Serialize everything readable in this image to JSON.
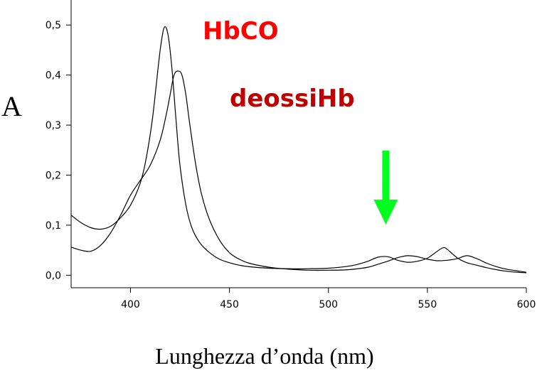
{
  "chart_data": {
    "type": "line",
    "xlabel": "Lunghezza d’onda (nm)",
    "ylabel": "A",
    "xlim": [
      370,
      600
    ],
    "ylim": [
      -0.025,
      0.55
    ],
    "xticks": [
      400,
      450,
      500,
      550,
      600
    ],
    "xtick_labels": [
      "400",
      "450",
      "500",
      "550",
      "600"
    ],
    "yticks": [
      0.0,
      0.1,
      0.2,
      0.3,
      0.4,
      0.5
    ],
    "ytick_labels": [
      "0,0",
      "0,1",
      "0,2",
      "0,3",
      "0,4",
      "0,5"
    ],
    "grid": false,
    "series": [
      {
        "color": "#000000",
        "x": [
          370,
          375,
          380,
          385,
          390,
          395,
          400,
          405,
          408,
          411,
          413,
          415,
          417,
          419,
          421,
          423,
          425,
          428,
          431,
          435,
          440,
          445,
          450,
          455,
          460,
          470,
          480,
          490,
          500,
          510,
          515,
          520,
          525,
          530,
          535,
          540,
          545,
          550,
          555,
          558,
          560,
          565,
          570,
          575,
          580,
          585,
          590,
          595,
          600
        ],
        "y": [
          0.12,
          0.105,
          0.095,
          0.092,
          0.098,
          0.115,
          0.14,
          0.185,
          0.235,
          0.31,
          0.38,
          0.45,
          0.495,
          0.48,
          0.41,
          0.31,
          0.22,
          0.14,
          0.095,
          0.065,
          0.045,
          0.032,
          0.025,
          0.02,
          0.017,
          0.014,
          0.013,
          0.013,
          0.014,
          0.018,
          0.022,
          0.028,
          0.036,
          0.037,
          0.03,
          0.026,
          0.028,
          0.034,
          0.048,
          0.055,
          0.052,
          0.035,
          0.025,
          0.02,
          0.015,
          0.011,
          0.008,
          0.006,
          0.005
        ]
      },
      {
        "color": "#000000",
        "x": [
          370,
          375,
          380,
          385,
          390,
          395,
          400,
          405,
          410,
          415,
          418,
          420,
          422,
          424,
          426,
          428,
          430,
          433,
          436,
          440,
          445,
          450,
          455,
          460,
          470,
          480,
          490,
          500,
          510,
          520,
          525,
          530,
          535,
          540,
          545,
          550,
          555,
          560,
          565,
          570,
          575,
          580,
          585,
          590,
          595,
          600
        ],
        "y": [
          0.056,
          0.05,
          0.048,
          0.06,
          0.085,
          0.12,
          0.16,
          0.19,
          0.22,
          0.27,
          0.32,
          0.36,
          0.4,
          0.408,
          0.4,
          0.36,
          0.3,
          0.22,
          0.16,
          0.11,
          0.07,
          0.045,
          0.032,
          0.024,
          0.016,
          0.012,
          0.01,
          0.01,
          0.011,
          0.016,
          0.022,
          0.028,
          0.035,
          0.039,
          0.037,
          0.032,
          0.029,
          0.03,
          0.033,
          0.039,
          0.033,
          0.024,
          0.017,
          0.012,
          0.009,
          0.006
        ]
      }
    ],
    "annotations": [
      {
        "text": "HbCO",
        "color": "#ff0000"
      },
      {
        "text": "deossiHb",
        "color": "#c00000"
      }
    ],
    "arrow": {
      "color": "#00ff1e",
      "x": 529
    }
  }
}
